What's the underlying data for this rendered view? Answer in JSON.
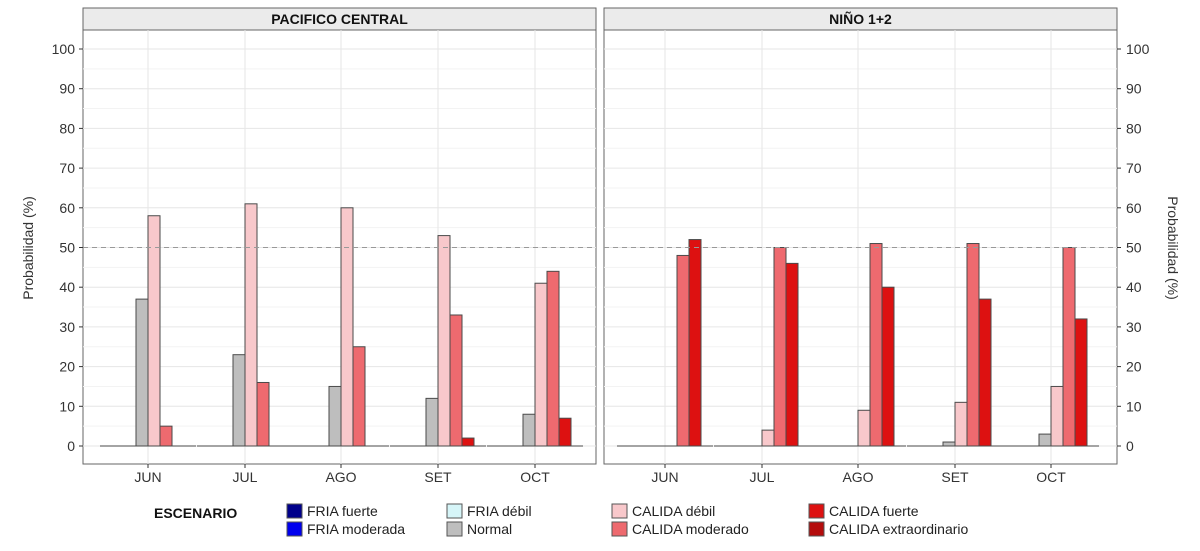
{
  "chart_data": {
    "type": "bar",
    "panels": [
      {
        "title": "PACIFICO CENTRAL",
        "categories": [
          "JUN",
          "JUL",
          "AGO",
          "SET",
          "OCT"
        ],
        "series": [
          {
            "name": "FRIA fuerte",
            "values": [
              0,
              0,
              0,
              0,
              0
            ]
          },
          {
            "name": "FRIA moderada",
            "values": [
              0,
              0,
              0,
              0,
              0
            ]
          },
          {
            "name": "FRIA débil",
            "values": [
              0,
              0,
              0,
              0,
              0
            ]
          },
          {
            "name": "Normal",
            "values": [
              37,
              23,
              15,
              12,
              8
            ]
          },
          {
            "name": "CALIDA débil",
            "values": [
              58,
              61,
              60,
              53,
              41
            ]
          },
          {
            "name": "CALIDA moderado",
            "values": [
              5,
              16,
              25,
              33,
              44
            ]
          },
          {
            "name": "CALIDA fuerte",
            "values": [
              0,
              0,
              0,
              2,
              7
            ]
          },
          {
            "name": "CALIDA extraordinario",
            "values": [
              0,
              0,
              0,
              0,
              0
            ]
          }
        ]
      },
      {
        "title": "NIÑO 1+2",
        "categories": [
          "JUN",
          "JUL",
          "AGO",
          "SET",
          "OCT"
        ],
        "series": [
          {
            "name": "FRIA fuerte",
            "values": [
              0,
              0,
              0,
              0,
              0
            ]
          },
          {
            "name": "FRIA moderada",
            "values": [
              0,
              0,
              0,
              0,
              0
            ]
          },
          {
            "name": "FRIA débil",
            "values": [
              0,
              0,
              0,
              0,
              0
            ]
          },
          {
            "name": "Normal",
            "values": [
              0,
              0,
              0,
              1,
              3
            ]
          },
          {
            "name": "CALIDA débil",
            "values": [
              0,
              4,
              9,
              11,
              15
            ]
          },
          {
            "name": "CALIDA moderado",
            "values": [
              48,
              50,
              51,
              51,
              50
            ]
          },
          {
            "name": "CALIDA fuerte",
            "values": [
              52,
              46,
              40,
              37,
              32
            ]
          },
          {
            "name": "CALIDA extraordinario",
            "values": [
              0,
              0,
              0,
              0,
              0
            ]
          }
        ]
      }
    ],
    "ylabel": "Probabilidad (%)",
    "ylim": [
      0,
      100
    ],
    "yticks": [
      0,
      10,
      20,
      30,
      40,
      50,
      60,
      70,
      80,
      90,
      100
    ],
    "reference_line": 50,
    "grid": true,
    "legend": {
      "title": "ESCENARIO",
      "placement": "bottom",
      "entries": [
        {
          "name": "FRIA fuerte",
          "color": "#00008B"
        },
        {
          "name": "FRIA moderada",
          "color": "#0000EE"
        },
        {
          "name": "FRIA débil",
          "color": "#D6F5F8"
        },
        {
          "name": "Normal",
          "color": "#BEBEBE"
        },
        {
          "name": "CALIDA débil",
          "color": "#F8C8CB"
        },
        {
          "name": "CALIDA moderado",
          "color": "#EE6A6F"
        },
        {
          "name": "CALIDA fuerte",
          "color": "#DD1111"
        },
        {
          "name": "CALIDA extraordinario",
          "color": "#B40C0C"
        }
      ]
    }
  }
}
